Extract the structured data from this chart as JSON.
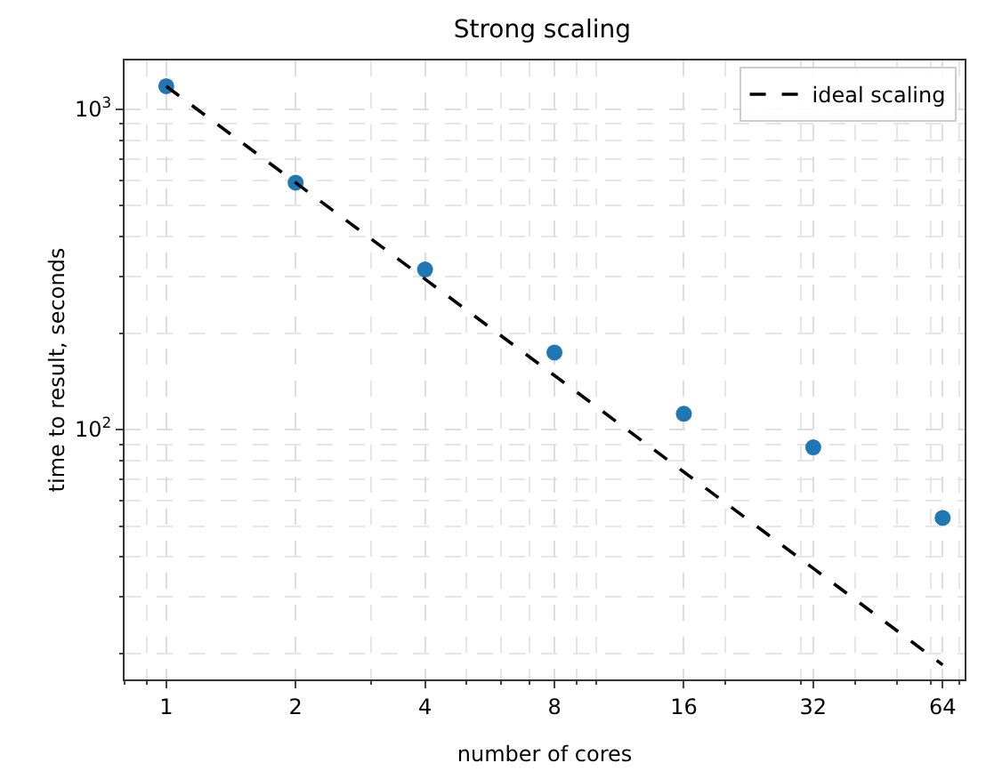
{
  "chart_data": {
    "type": "scatter",
    "title": "Strong scaling",
    "xlabel": "number of cores",
    "ylabel": "time to result, seconds",
    "log": "xy",
    "grid": true,
    "legend": "top right",
    "xlim": [
      0.8,
      72
    ],
    "xticks": [
      1,
      2,
      4,
      8,
      16,
      32,
      64
    ],
    "ylim": [
      16.6,
      1420
    ],
    "yticks": [
      {
        "value": 100,
        "label": "10$^{2}$"
      },
      {
        "value": 1000,
        "label": "10$^{3}$"
      }
    ],
    "series": [
      {
        "marker": "circle",
        "color": "#1f77b4",
        "x": [
          1,
          2,
          4,
          8,
          16,
          32,
          64
        ],
        "values": [
          1180,
          590,
          316,
          174,
          112,
          88,
          53
        ]
      },
      {
        "type": "line",
        "marker": "none",
        "name": "ideal scaling",
        "color": "#000000",
        "line_style": "dashed",
        "x": [
          1,
          2,
          4,
          8,
          16,
          32,
          64
        ],
        "values": [
          1180,
          590,
          295,
          147.5,
          73.75,
          36.875,
          18.4375
        ]
      }
    ]
  }
}
